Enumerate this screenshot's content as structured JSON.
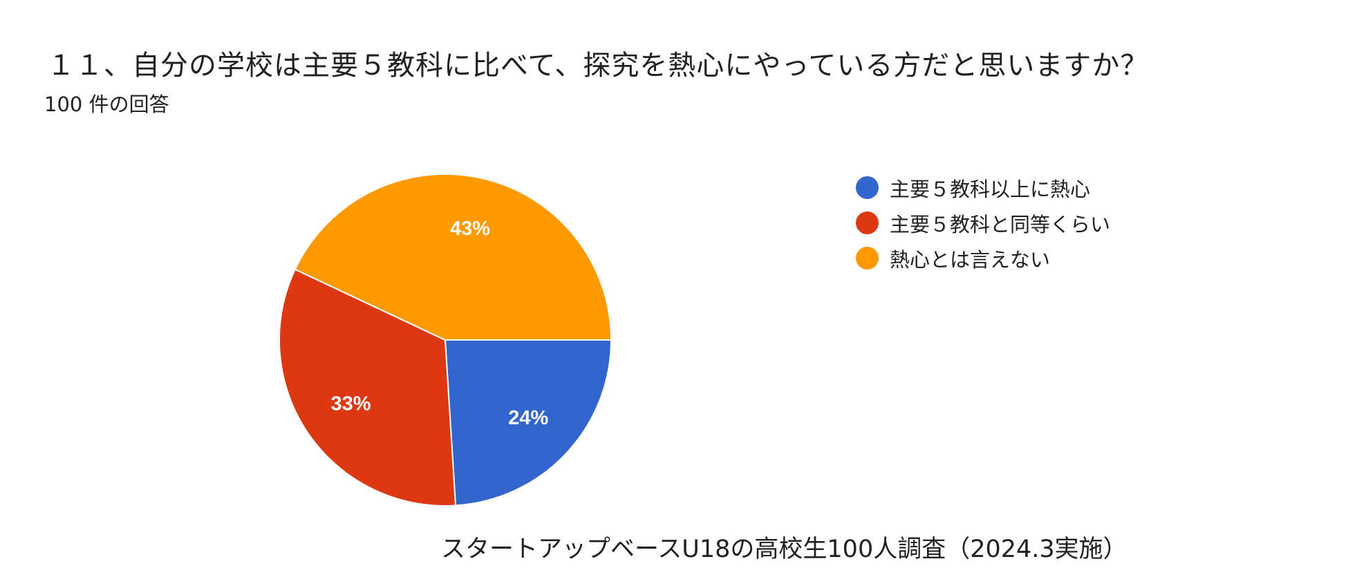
{
  "header": {
    "title": "１１、自分の学校は主要５教科に比べて、探究を熱心にやっている方だと思いますか？",
    "response_count": "100 件の回答"
  },
  "footer": {
    "source": "スタートアップベースU18の高校生100人調査（2024.3実施）"
  },
  "chart_data": {
    "type": "pie",
    "title": "１１、自分の学校は主要５教科に比べて、探究を熱心にやっている方だと思いますか？",
    "slices": [
      {
        "label": "主要５教科以上に熱心",
        "value": 24,
        "display": "24%",
        "color": "#3366cc"
      },
      {
        "label": "主要５教科と同等くらい",
        "value": 33,
        "display": "33%",
        "color": "#dc3912"
      },
      {
        "label": "熱心とは言えない",
        "value": 43,
        "display": "43%",
        "color": "#ff9900"
      }
    ],
    "start_angle": "east",
    "direction": "clockwise",
    "legend_position": "right"
  }
}
